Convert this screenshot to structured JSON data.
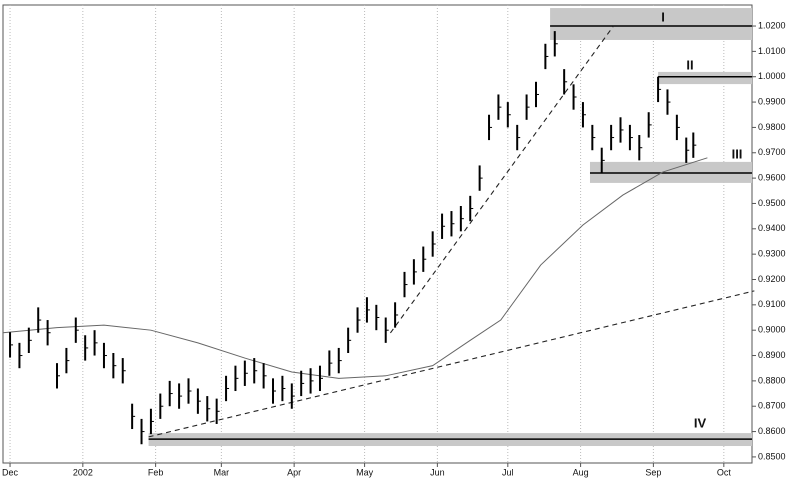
{
  "chart_data": {
    "type": "ohlc",
    "x": [
      0,
      4,
      8,
      12,
      16,
      20,
      24,
      28,
      32,
      36,
      40,
      44,
      48,
      52,
      56,
      60,
      64,
      68,
      72,
      76,
      80,
      84,
      88,
      92,
      96,
      100,
      104,
      108,
      112,
      116,
      120,
      124,
      128,
      132,
      136,
      140,
      144,
      148,
      152,
      156,
      160,
      164,
      168,
      172,
      176,
      180,
      184,
      188,
      192,
      196,
      200,
      204,
      208,
      212,
      216,
      220,
      224,
      228,
      232,
      236,
      240,
      244,
      248,
      252,
      256,
      260,
      264,
      268,
      272,
      276,
      280,
      284,
      288,
      291
    ],
    "high": [
      0.8992,
      0.895,
      0.901,
      0.909,
      0.904,
      0.887,
      0.893,
      0.905,
      0.898,
      0.9,
      0.895,
      0.891,
      0.889,
      0.871,
      0.865,
      0.869,
      0.875,
      0.88,
      0.879,
      0.881,
      0.877,
      0.874,
      0.873,
      0.882,
      0.886,
      0.888,
      0.889,
      0.887,
      0.881,
      0.882,
      0.879,
      0.884,
      0.885,
      0.886,
      0.892,
      0.893,
      0.901,
      0.909,
      0.913,
      0.91,
      0.905,
      0.911,
      0.923,
      0.928,
      0.933,
      0.939,
      0.946,
      0.947,
      0.949,
      0.953,
      0.965,
      0.985,
      0.993,
      0.99,
      0.981,
      0.993,
      0.998,
      1.013,
      1.018,
      1.003,
      0.997,
      0.99,
      0.981,
      0.972,
      0.981,
      0.984,
      0.981,
      0.977,
      0.986,
      1.0,
      0.995,
      0.985,
      0.976,
      0.978
    ],
    "low": [
      0.8892,
      0.885,
      0.891,
      0.899,
      0.894,
      0.877,
      0.883,
      0.895,
      0.888,
      0.89,
      0.885,
      0.881,
      0.879,
      0.861,
      0.855,
      0.859,
      0.865,
      0.87,
      0.869,
      0.871,
      0.867,
      0.864,
      0.863,
      0.872,
      0.876,
      0.878,
      0.879,
      0.877,
      0.871,
      0.872,
      0.869,
      0.874,
      0.875,
      0.876,
      0.882,
      0.883,
      0.891,
      0.899,
      0.903,
      0.9,
      0.895,
      0.901,
      0.913,
      0.918,
      0.923,
      0.929,
      0.936,
      0.937,
      0.939,
      0.943,
      0.955,
      0.975,
      0.983,
      0.98,
      0.971,
      0.983,
      0.988,
      1.003,
      1.008,
      0.993,
      0.987,
      0.98,
      0.971,
      0.962,
      0.971,
      0.974,
      0.971,
      0.967,
      0.976,
      0.99,
      0.985,
      0.975,
      0.966,
      0.968
    ],
    "close": [
      0.8942,
      0.89,
      0.896,
      0.904,
      0.899,
      0.882,
      0.888,
      0.9,
      0.893,
      0.895,
      0.89,
      0.886,
      0.884,
      0.866,
      0.86,
      0.864,
      0.87,
      0.875,
      0.874,
      0.876,
      0.872,
      0.869,
      0.868,
      0.877,
      0.881,
      0.883,
      0.884,
      0.882,
      0.876,
      0.877,
      0.874,
      0.879,
      0.88,
      0.881,
      0.887,
      0.888,
      0.896,
      0.904,
      0.908,
      0.905,
      0.9,
      0.906,
      0.918,
      0.923,
      0.928,
      0.934,
      0.941,
      0.942,
      0.944,
      0.948,
      0.96,
      0.98,
      0.988,
      0.985,
      0.976,
      0.988,
      0.993,
      1.008,
      1.013,
      0.998,
      0.992,
      0.985,
      0.976,
      0.967,
      0.976,
      0.979,
      0.976,
      0.972,
      0.981,
      0.995,
      0.99,
      0.98,
      0.971,
      0.973
    ],
    "moving_average": {
      "x": [
        -3,
        20,
        40,
        60,
        80,
        100,
        120,
        140,
        160,
        180,
        196,
        209,
        226,
        244,
        261,
        278,
        297
      ],
      "y": [
        0.899,
        0.901,
        0.902,
        0.9,
        0.895,
        0.889,
        0.8835,
        0.881,
        0.882,
        0.886,
        0.896,
        0.904,
        0.9257,
        0.9415,
        0.9533,
        0.9624,
        0.968
      ]
    },
    "trendlines": [
      {
        "x": [
          59,
          317
        ],
        "y": [
          0.8579,
          0.9155
        ]
      },
      {
        "x": [
          162,
          257
        ],
        "y": [
          0.8989,
          1.02
        ]
      }
    ],
    "zones": [
      {
        "label": "I",
        "x": [
          230,
          317
        ],
        "band": [
          1.0145,
          1.0271
        ],
        "level": 1.02
      },
      {
        "label": "II",
        "x": [
          276,
          317
        ],
        "band": [
          0.9971,
          1.0019
        ],
        "level": 1.0
      },
      {
        "label": "III",
        "x": [
          247,
          317
        ],
        "band": [
          0.9581,
          0.9664
        ],
        "level": 0.962
      },
      {
        "label": "IV",
        "x": [
          59,
          317
        ],
        "band": [
          0.8543,
          0.8594
        ],
        "level": 0.857
      }
    ],
    "color": "#000000",
    "xlim": [
      -3,
      316
    ],
    "xticks": [
      {
        "value": 0,
        "label": "Dec"
      },
      {
        "value": 31,
        "label": "2002"
      },
      {
        "value": 62,
        "label": "Feb"
      },
      {
        "value": 90,
        "label": "Mar"
      },
      {
        "value": 121,
        "label": "Apr"
      },
      {
        "value": 151,
        "label": "May"
      },
      {
        "value": 182,
        "label": "Jun"
      },
      {
        "value": 212,
        "label": "Jul"
      },
      {
        "value": 243,
        "label": "Aug"
      },
      {
        "value": 274,
        "label": "Sep"
      },
      {
        "value": 304,
        "label": "Oct"
      }
    ],
    "ylim": [
      0.8476,
      1.0283
    ],
    "yticks": [
      {
        "value": 0.85,
        "label": "0.8500"
      },
      {
        "value": 0.86,
        "label": "0.8600"
      },
      {
        "value": 0.87,
        "label": "0.8700"
      },
      {
        "value": 0.88,
        "label": "0.8800"
      },
      {
        "value": 0.89,
        "label": "0.8900"
      },
      {
        "value": 0.9,
        "label": "0.9000"
      },
      {
        "value": 0.91,
        "label": "0.9100"
      },
      {
        "value": 0.92,
        "label": "0.9200"
      },
      {
        "value": 0.93,
        "label": "0.9300"
      },
      {
        "value": 0.94,
        "label": "0.9400"
      },
      {
        "value": 0.95,
        "label": "0.9500"
      },
      {
        "value": 0.96,
        "label": "0.9600"
      },
      {
        "value": 0.97,
        "label": "0.9700"
      },
      {
        "value": 0.98,
        "label": "0.9800"
      },
      {
        "value": 0.99,
        "label": "0.9900"
      },
      {
        "value": 1.0,
        "label": "1.0000"
      },
      {
        "value": 1.01,
        "label": "1.0100"
      },
      {
        "value": 1.02,
        "label": "1.0200"
      }
    ],
    "grid": true
  }
}
